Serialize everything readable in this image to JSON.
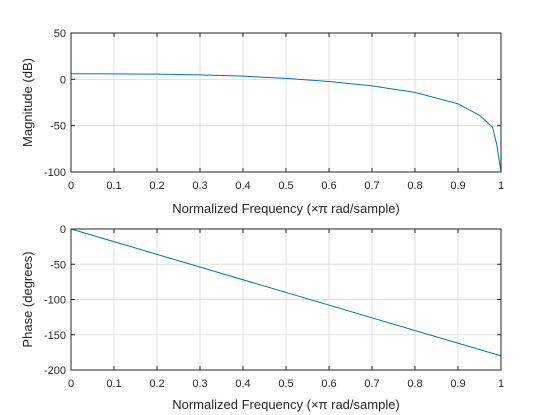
{
  "chart_data": [
    {
      "type": "line",
      "ylabel": "Magnitude (dB)",
      "xlabel": "Normalized Frequency  (×π rad/sample)",
      "xlim": [
        0,
        1
      ],
      "ylim": [
        -100,
        50
      ],
      "xticks": [
        "0",
        "0.1",
        "0.2",
        "0.3",
        "0.4",
        "0.5",
        "0.6",
        "0.7",
        "0.8",
        "0.9",
        "1"
      ],
      "yticks": [
        "50",
        "0",
        "-50",
        "-100"
      ],
      "grid": true,
      "color": "#0072bd",
      "series": [
        {
          "x": [
            0,
            0.1,
            0.2,
            0.3,
            0.4,
            0.5,
            0.6,
            0.7,
            0.8,
            0.9,
            0.95,
            0.98,
            0.99,
            1.0
          ],
          "values": [
            6.0,
            5.9,
            5.6,
            4.8,
            3.4,
            1.0,
            -2.4,
            -7.0,
            -14.1,
            -26.4,
            -38.8,
            -51.5,
            -70,
            -100
          ]
        }
      ]
    },
    {
      "type": "line",
      "ylabel": "Phase (degrees)",
      "xlabel": "Normalized Frequency  (×π rad/sample)",
      "xlim": [
        0,
        1
      ],
      "ylim": [
        -200,
        0
      ],
      "xticks": [
        "0",
        "0.1",
        "0.2",
        "0.3",
        "0.4",
        "0.5",
        "0.6",
        "0.7",
        "0.8",
        "0.9",
        "1"
      ],
      "yticks": [
        "0",
        "-50",
        "-100",
        "-150",
        "-200"
      ],
      "grid": true,
      "color": "#0072bd",
      "series": [
        {
          "x": [
            0,
            1
          ],
          "values": [
            0,
            -180
          ]
        }
      ]
    }
  ]
}
